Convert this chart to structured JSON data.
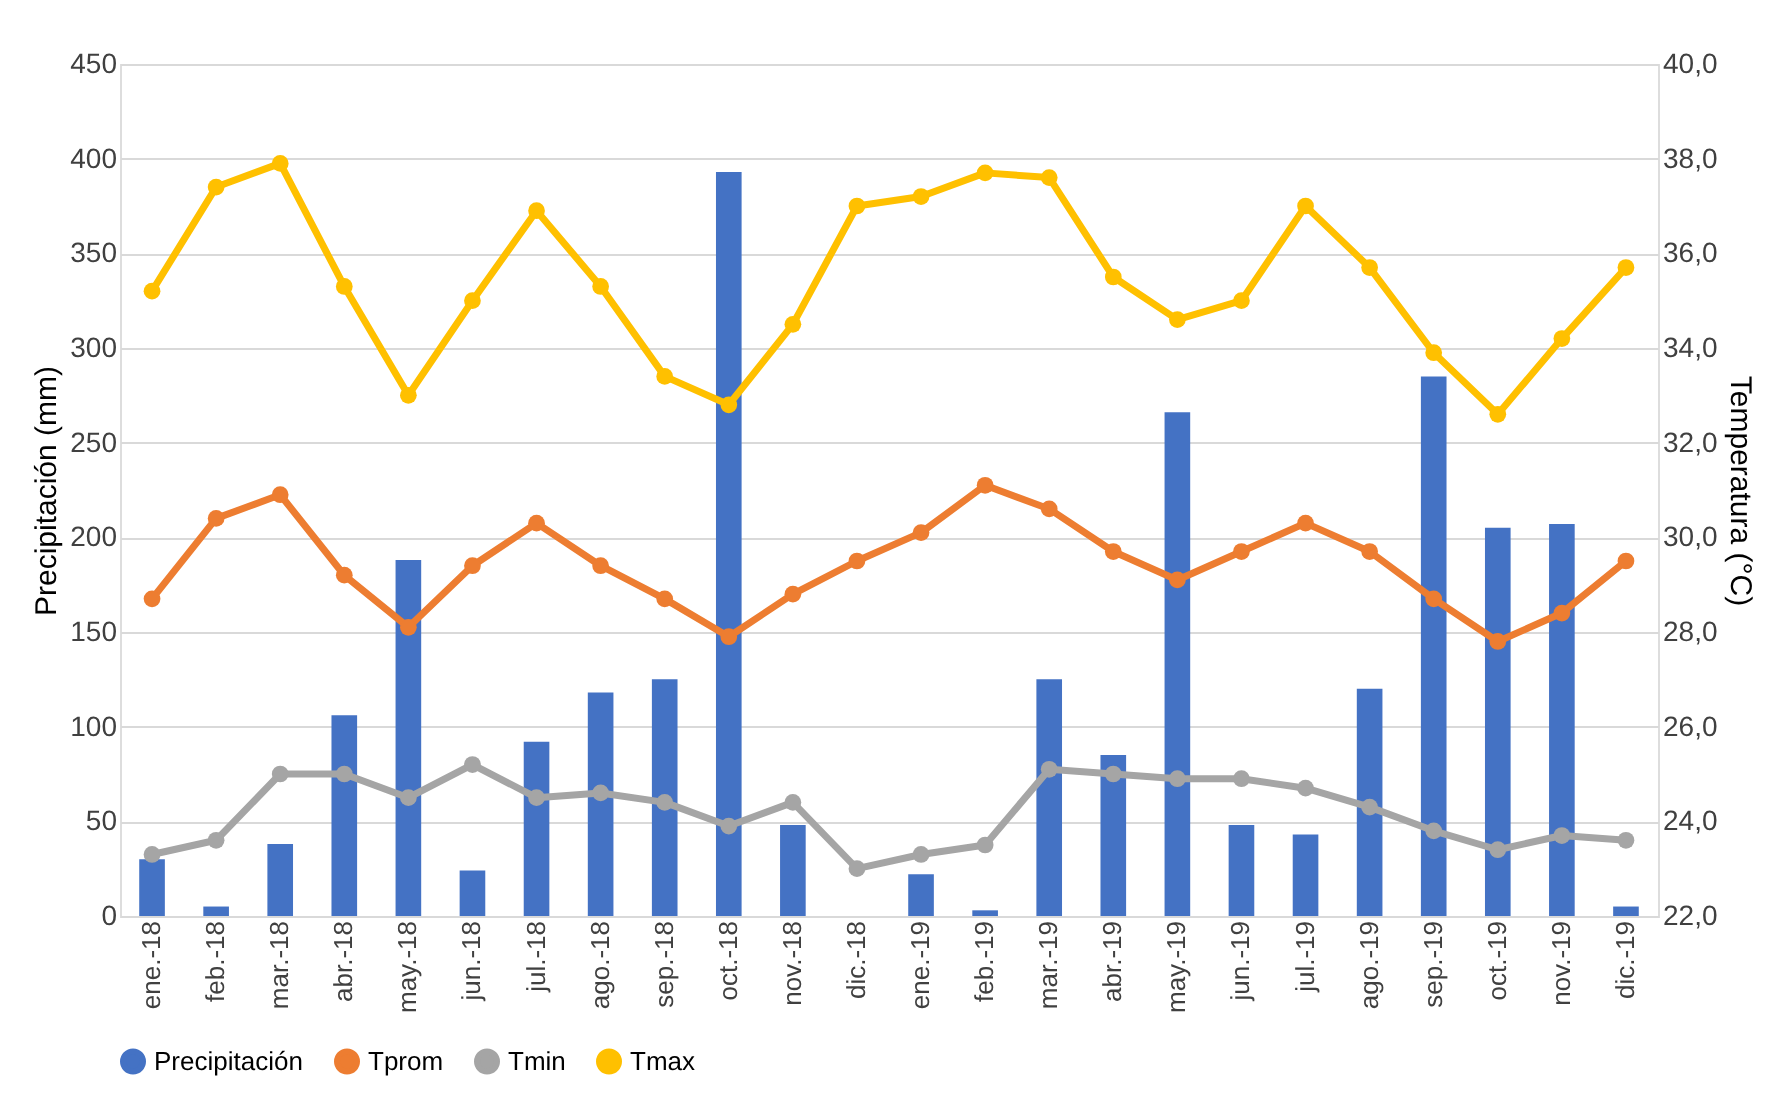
{
  "chart_data": {
    "type": "bar",
    "ylabel": "Precipitación (mm)",
    "y2label": "Temperatura (°C)",
    "categories": [
      "ene.-18",
      "feb.-18",
      "mar.-18",
      "abr.-18",
      "may.-18",
      "jun.-18",
      "jul.-18",
      "ago.-18",
      "sep.-18",
      "oct.-18",
      "nov.-18",
      "dic.-18",
      "ene.-19",
      "feb.-19",
      "mar.-19",
      "abr.-19",
      "may.-19",
      "jun.-19",
      "jul.-19",
      "ago.-19",
      "sep.-19",
      "oct.-19",
      "nov.-19",
      "dic.-19"
    ],
    "series": [
      {
        "name": "Precipitación",
        "color": "#4472c4",
        "values": [
          30,
          5,
          38,
          106,
          188,
          24,
          92,
          118,
          125,
          393,
          48,
          0,
          22,
          3,
          125,
          85,
          266,
          48,
          43,
          120,
          285,
          205,
          207,
          5
        ]
      },
      {
        "name": "Tprom",
        "type": "line",
        "axis": "y2",
        "color": "#ed7d31",
        "values": [
          28.7,
          30.4,
          30.9,
          29.2,
          28.1,
          29.4,
          30.3,
          29.4,
          28.7,
          27.9,
          28.8,
          29.5,
          30.1,
          31.1,
          30.6,
          29.7,
          29.1,
          29.7,
          30.3,
          29.7,
          28.7,
          27.8,
          28.4,
          29.5
        ]
      },
      {
        "name": "Tmin",
        "type": "line",
        "axis": "y2",
        "color": "#a5a5a5",
        "values": [
          23.3,
          23.6,
          25.0,
          25.0,
          24.5,
          25.2,
          24.5,
          24.6,
          24.4,
          23.9,
          24.4,
          23.0,
          23.3,
          23.5,
          25.1,
          25.0,
          24.9,
          24.9,
          24.7,
          24.3,
          23.8,
          23.4,
          23.7,
          23.6
        ]
      },
      {
        "name": "Tmax",
        "type": "line",
        "axis": "y2",
        "color": "#ffc000",
        "values": [
          35.2,
          37.4,
          37.9,
          35.3,
          33.0,
          35.0,
          36.9,
          35.3,
          33.4,
          32.8,
          34.5,
          37.0,
          37.2,
          37.7,
          37.6,
          35.5,
          34.6,
          35.0,
          37.0,
          35.7,
          33.9,
          32.6,
          34.2,
          35.7
        ]
      }
    ],
    "ylim": [
      0,
      450
    ],
    "yticks": [
      0,
      50,
      100,
      150,
      200,
      250,
      300,
      350,
      400,
      450
    ],
    "y2lim": [
      22,
      40
    ],
    "y2ticks": [
      {
        "value": 22,
        "label": "22,0"
      },
      {
        "value": 24,
        "label": "24,0"
      },
      {
        "value": 26,
        "label": "26,0"
      },
      {
        "value": 28,
        "label": "28,0"
      },
      {
        "value": 30,
        "label": "30,0"
      },
      {
        "value": 32,
        "label": "32,0"
      },
      {
        "value": 34,
        "label": "34,0"
      },
      {
        "value": 36,
        "label": "36,0"
      },
      {
        "value": 38,
        "label": "38,0"
      },
      {
        "value": 40,
        "label": "40,0"
      }
    ],
    "grid": "y",
    "legend": "bottom",
    "marker": "circle",
    "line_style": "solid"
  }
}
